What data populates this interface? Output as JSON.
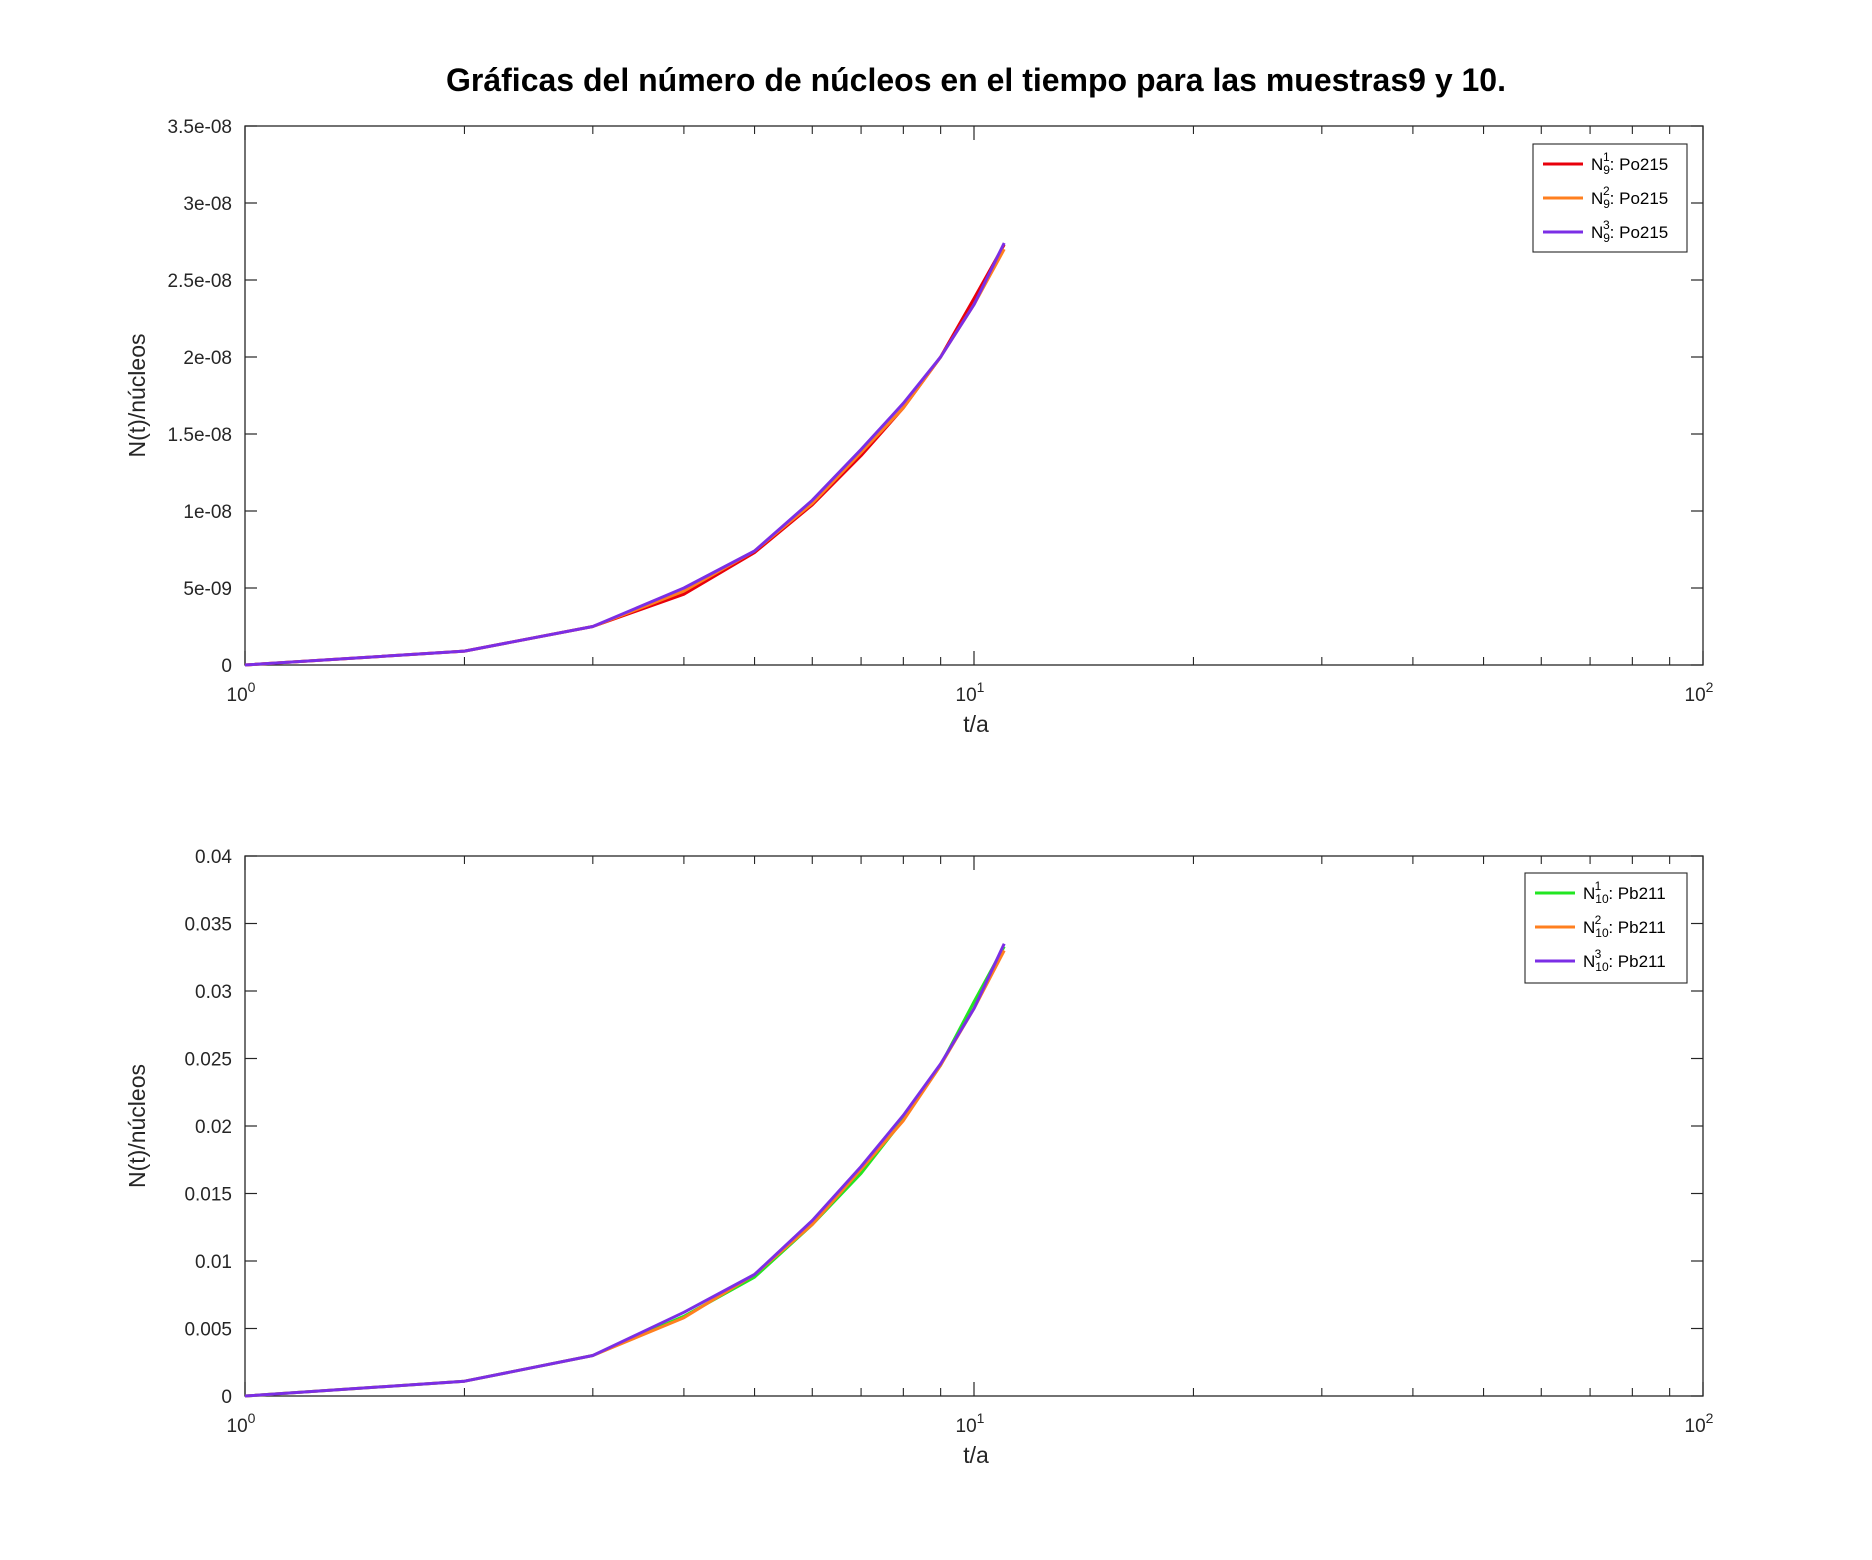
{
  "colors": {
    "red": "#e8000b",
    "orange": "#ff7f1f",
    "purple": "#7b2ee6",
    "green": "#22e622"
  },
  "chart_data": [
    {
      "type": "line",
      "title": "Gráficas del número de núcleos en el tiempo para las muestras9 y 10.",
      "xlabel": "t/a",
      "ylabel": "N(t)/núcleos",
      "xscale": "log",
      "xlim": [
        1,
        100
      ],
      "ylim": [
        0,
        3.5e-08
      ],
      "yticks": [
        "0",
        "5e-09",
        "1e-08",
        "1.5e-08",
        "2e-08",
        "2.5e-08",
        "3e-08",
        "3.5e-08"
      ],
      "xticks": [
        {
          "base": "10",
          "exp": "0"
        },
        {
          "base": "10",
          "exp": "1"
        },
        {
          "base": "10",
          "exp": "2"
        }
      ],
      "legend": "top-right",
      "grid": false,
      "x": [
        1,
        2,
        3,
        4,
        5,
        6,
        7,
        8,
        9,
        10,
        11
      ],
      "series": [
        {
          "name": "N",
          "sup": "1",
          "sub": "9",
          "label": ": Po215",
          "color": "#e8000b",
          "values": [
            0,
            9e-10,
            2.5e-09,
            4.6e-09,
            7.3e-09,
            1.04e-08,
            1.36e-08,
            1.67e-08,
            2e-08,
            2.38e-08,
            2.73e-08
          ]
        },
        {
          "name": "N",
          "sup": "2",
          "sub": "9",
          "label": ": Po215",
          "color": "#ff7f1f",
          "values": [
            0,
            9e-10,
            2.5e-09,
            4.8e-09,
            7.4e-09,
            1.05e-08,
            1.38e-08,
            1.67e-08,
            2e-08,
            2.34e-08,
            2.7e-08
          ]
        },
        {
          "name": "N",
          "sup": "3",
          "sub": "9",
          "label": ": Po215",
          "color": "#7b2ee6",
          "values": [
            0,
            9e-10,
            2.5e-09,
            5e-09,
            7.4e-09,
            1.07e-08,
            1.4e-08,
            1.7e-08,
            2e-08,
            2.34e-08,
            2.74e-08
          ]
        }
      ]
    },
    {
      "type": "line",
      "title": "",
      "xlabel": "t/a",
      "ylabel": "N(t)/núcleos",
      "xscale": "log",
      "xlim": [
        1,
        100
      ],
      "ylim": [
        0,
        0.04
      ],
      "yticks": [
        "0",
        "0.005",
        "0.01",
        "0.015",
        "0.02",
        "0.025",
        "0.03",
        "0.035",
        "0.04"
      ],
      "xticks": [
        {
          "base": "10",
          "exp": "0"
        },
        {
          "base": "10",
          "exp": "1"
        },
        {
          "base": "10",
          "exp": "2"
        }
      ],
      "legend": "top-right",
      "grid": false,
      "x": [
        1,
        2,
        3,
        4,
        5,
        6,
        7,
        8,
        9,
        10,
        11
      ],
      "series": [
        {
          "name": "N",
          "sup": "1",
          "sub": "10",
          "label": ": Pb211",
          "color": "#22e622",
          "values": [
            0,
            0.0011,
            0.003,
            0.0059,
            0.0088,
            0.0127,
            0.0165,
            0.0205,
            0.0245,
            0.0292,
            0.0333
          ]
        },
        {
          "name": "N",
          "sup": "2",
          "sub": "10",
          "label": ": Pb211",
          "color": "#ff7f1f",
          "values": [
            0,
            0.0011,
            0.003,
            0.0058,
            0.009,
            0.0127,
            0.0168,
            0.0204,
            0.0245,
            0.0287,
            0.033
          ]
        },
        {
          "name": "N",
          "sup": "3",
          "sub": "10",
          "label": ": Pb211",
          "color": "#7b2ee6",
          "values": [
            0,
            0.0011,
            0.003,
            0.0062,
            0.009,
            0.013,
            0.017,
            0.0208,
            0.0246,
            0.0287,
            0.0335
          ]
        }
      ]
    }
  ]
}
